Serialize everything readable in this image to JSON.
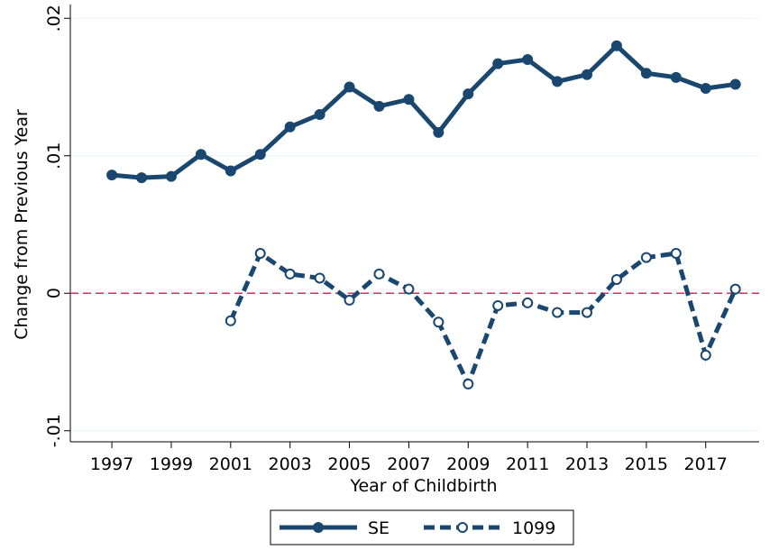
{
  "chart_data": {
    "type": "line",
    "x_label": "Year of Childbirth",
    "y_label": "Change from Previous Year",
    "x": [
      1997,
      1998,
      1999,
      2000,
      2001,
      2002,
      2003,
      2004,
      2005,
      2006,
      2007,
      2008,
      2009,
      2010,
      2011,
      2012,
      2013,
      2014,
      2015,
      2016,
      2017,
      2018
    ],
    "series": [
      {
        "name": "SE",
        "color": "#1a476f",
        "dashed": false,
        "marker_fill": "#1a476f",
        "values": [
          0.0086,
          0.0084,
          0.0085,
          0.0101,
          0.0089,
          0.0101,
          0.0121,
          0.013,
          0.015,
          0.0136,
          0.0141,
          0.0117,
          0.0145,
          0.0167,
          0.017,
          0.0154,
          0.0159,
          0.018,
          0.016,
          0.0157,
          0.0149,
          0.0152
        ]
      },
      {
        "name": "1099",
        "color": "#1a476f",
        "dashed": true,
        "marker_fill": "#ffffff",
        "values": [
          null,
          null,
          null,
          null,
          -0.002,
          0.0029,
          0.0014,
          0.0011,
          -0.0005,
          0.0014,
          0.0003,
          -0.0021,
          -0.0066,
          -0.0009,
          -0.0007,
          -0.0014,
          -0.0014,
          0.001,
          0.0026,
          0.0029,
          -0.0045,
          0.0003
        ]
      }
    ],
    "reference_line": {
      "value": 0,
      "color": "#d62d5a"
    },
    "xlim": [
      1995.6,
      2018.8
    ],
    "xticks": [
      1997,
      1999,
      2001,
      2003,
      2005,
      2007,
      2009,
      2011,
      2013,
      2015,
      2017
    ],
    "ylim": [
      -0.011,
      0.021
    ],
    "yticks": [
      {
        "value": -0.01,
        "label": "-.01"
      },
      {
        "value": 0,
        "label": "0"
      },
      {
        "value": 0.01,
        "label": ".01"
      },
      {
        "value": 0.02,
        "label": ".02"
      }
    ],
    "grid": true,
    "legend": "bottom"
  }
}
